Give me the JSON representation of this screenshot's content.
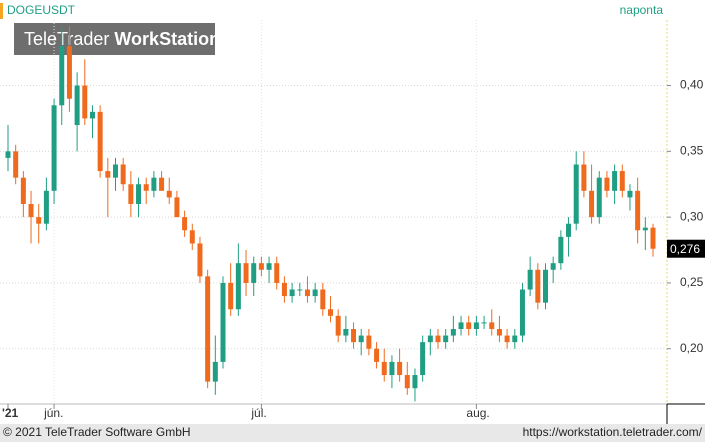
{
  "chart_data": {
    "type": "candlestick",
    "symbol": "DOGEUSDT",
    "interval": "naponta",
    "watermark_light": "TeleTrader",
    "watermark_bold": "WorkStation",
    "footer_left": "© 2021 TeleTrader Software GmbH",
    "footer_right": "https://workstation.teletrader.com/",
    "up_color": "#1f9e83",
    "down_color": "#f06a1e",
    "categories": [
      "'21",
      null,
      null,
      null,
      null,
      null,
      "jún.",
      null,
      null,
      null,
      null,
      null,
      null,
      null,
      null,
      null,
      null,
      null,
      null,
      null,
      null,
      null,
      null,
      null,
      null,
      null,
      null,
      null,
      null,
      null,
      null,
      null,
      null,
      "júl.",
      null,
      null,
      null,
      null,
      null,
      null,
      null,
      null,
      null,
      null,
      null,
      null,
      null,
      null,
      null,
      null,
      null,
      null,
      null,
      null,
      null,
      null,
      null,
      null,
      null,
      null,
      null,
      "aug.",
      null,
      null,
      null,
      null,
      null,
      null,
      null,
      null,
      null,
      null,
      null,
      null,
      null,
      null,
      null,
      null,
      null,
      null,
      null,
      null,
      null,
      null,
      null
    ],
    "open": [
      0.345,
      0.35,
      0.33,
      0.31,
      0.3,
      0.295,
      0.32,
      0.385,
      0.43,
      0.37,
      0.4,
      0.375,
      0.38,
      0.335,
      0.33,
      0.34,
      0.325,
      0.31,
      0.325,
      0.32,
      0.33,
      0.32,
      0.315,
      0.3,
      0.29,
      0.28,
      0.255,
      0.175,
      0.19,
      0.25,
      0.23,
      0.265,
      0.25,
      0.265,
      0.26,
      0.265,
      0.25,
      0.24,
      0.245,
      0.245,
      0.24,
      0.245,
      0.23,
      0.225,
      0.21,
      0.215,
      0.205,
      0.21,
      0.2,
      0.19,
      0.18,
      0.19,
      0.18,
      0.17,
      0.18,
      0.205,
      0.21,
      0.205,
      0.21,
      0.215,
      0.22,
      0.215,
      0.22,
      0.22,
      0.215,
      0.21,
      0.205,
      0.21,
      0.245,
      0.26,
      0.235,
      0.26,
      0.265,
      0.285,
      0.295,
      0.34,
      0.32,
      0.3,
      0.33,
      0.32,
      0.335,
      0.315,
      0.32,
      0.29,
      0.292
    ],
    "high": [
      0.37,
      0.355,
      0.335,
      0.32,
      0.31,
      0.33,
      0.39,
      0.445,
      0.445,
      0.41,
      0.42,
      0.385,
      0.385,
      0.345,
      0.345,
      0.345,
      0.335,
      0.33,
      0.33,
      0.335,
      0.335,
      0.33,
      0.32,
      0.305,
      0.295,
      0.285,
      0.26,
      0.21,
      0.255,
      0.265,
      0.28,
      0.275,
      0.27,
      0.27,
      0.27,
      0.27,
      0.255,
      0.25,
      0.25,
      0.255,
      0.25,
      0.25,
      0.24,
      0.23,
      0.225,
      0.22,
      0.215,
      0.215,
      0.205,
      0.2,
      0.195,
      0.2,
      0.19,
      0.185,
      0.21,
      0.215,
      0.215,
      0.215,
      0.225,
      0.225,
      0.225,
      0.225,
      0.225,
      0.23,
      0.225,
      0.215,
      0.215,
      0.25,
      0.27,
      0.265,
      0.265,
      0.27,
      0.29,
      0.3,
      0.35,
      0.35,
      0.34,
      0.335,
      0.335,
      0.34,
      0.34,
      0.325,
      0.33,
      0.3,
      0.295
    ],
    "low": [
      0.335,
      0.325,
      0.3,
      0.28,
      0.28,
      0.29,
      0.31,
      0.37,
      0.38,
      0.35,
      0.37,
      0.36,
      0.33,
      0.3,
      0.32,
      0.32,
      0.3,
      0.3,
      0.31,
      0.315,
      0.32,
      0.31,
      0.3,
      0.285,
      0.275,
      0.25,
      0.17,
      0.165,
      0.185,
      0.225,
      0.225,
      0.24,
      0.24,
      0.255,
      0.25,
      0.245,
      0.235,
      0.235,
      0.24,
      0.235,
      0.235,
      0.225,
      0.22,
      0.205,
      0.205,
      0.2,
      0.195,
      0.195,
      0.185,
      0.175,
      0.17,
      0.175,
      0.165,
      0.16,
      0.175,
      0.195,
      0.2,
      0.2,
      0.205,
      0.21,
      0.21,
      0.21,
      0.215,
      0.21,
      0.205,
      0.2,
      0.2,
      0.205,
      0.24,
      0.23,
      0.23,
      0.25,
      0.26,
      0.27,
      0.29,
      0.315,
      0.295,
      0.295,
      0.315,
      0.31,
      0.315,
      0.305,
      0.28,
      0.275,
      0.27
    ],
    "close": [
      0.35,
      0.33,
      0.31,
      0.3,
      0.295,
      0.32,
      0.385,
      0.43,
      0.39,
      0.4,
      0.375,
      0.38,
      0.335,
      0.33,
      0.34,
      0.325,
      0.31,
      0.325,
      0.32,
      0.33,
      0.32,
      0.315,
      0.3,
      0.29,
      0.28,
      0.255,
      0.175,
      0.19,
      0.25,
      0.23,
      0.265,
      0.25,
      0.265,
      0.26,
      0.265,
      0.25,
      0.24,
      0.245,
      0.245,
      0.24,
      0.245,
      0.23,
      0.225,
      0.21,
      0.215,
      0.205,
      0.21,
      0.2,
      0.19,
      0.18,
      0.19,
      0.18,
      0.17,
      0.18,
      0.205,
      0.21,
      0.205,
      0.21,
      0.215,
      0.22,
      0.215,
      0.22,
      0.22,
      0.215,
      0.21,
      0.205,
      0.21,
      0.245,
      0.26,
      0.235,
      0.26,
      0.265,
      0.285,
      0.295,
      0.34,
      0.32,
      0.3,
      0.33,
      0.32,
      0.335,
      0.32,
      0.32,
      0.29,
      0.292,
      0.276
    ],
    "last_price": {
      "value": 0.276,
      "label": "0,276"
    },
    "ylim": [
      0.158,
      0.465
    ],
    "yticks": [
      {
        "value": 0.2,
        "label": "0,20"
      },
      {
        "value": 0.25,
        "label": "0,25"
      },
      {
        "value": 0.3,
        "label": "0,30"
      },
      {
        "value": 0.35,
        "label": "0,35"
      },
      {
        "value": 0.4,
        "label": "0,40"
      }
    ],
    "grid": true
  }
}
